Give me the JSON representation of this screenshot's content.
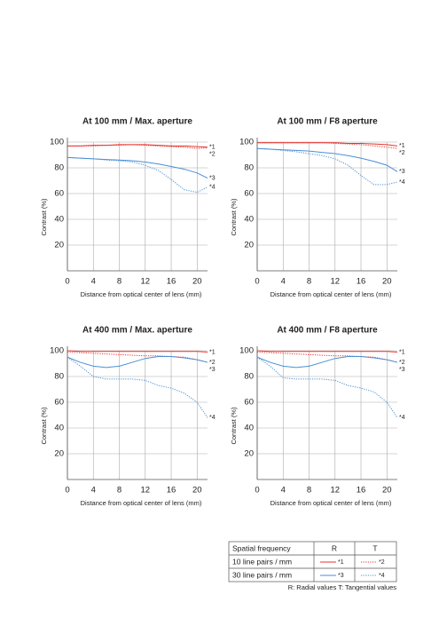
{
  "chart_data": [
    {
      "type": "line",
      "title": "At 100 mm / Max. aperture",
      "xlabel": "Distance from optical center of lens (mm)",
      "ylabel": "Contrast (%)",
      "x": [
        0,
        2,
        4,
        6,
        8,
        10,
        12,
        14,
        16,
        18,
        20,
        21.6
      ],
      "xlim": [
        0,
        21.6
      ],
      "xticks": [
        0,
        4,
        8,
        12,
        16,
        20
      ],
      "ylim": [
        0,
        100
      ],
      "yticks": [
        20,
        40,
        60,
        80,
        100
      ],
      "grid": true,
      "series": [
        {
          "name": "*1",
          "color": "#e8322f",
          "linestyle": "solid",
          "values": [
            97,
            97,
            97.5,
            97.5,
            98,
            98,
            98,
            97.5,
            97,
            97,
            96.5,
            96
          ]
        },
        {
          "name": "*2",
          "color": "#e8322f",
          "linestyle": "dotted",
          "values": [
            97,
            97,
            97,
            97.5,
            97.5,
            98,
            97.5,
            97,
            96.5,
            96,
            95,
            95.5
          ]
        },
        {
          "name": "*3",
          "color": "#4a8fd6",
          "linestyle": "solid",
          "values": [
            88,
            87.5,
            87,
            86.5,
            86,
            85.5,
            84.5,
            83,
            81,
            79,
            76,
            72
          ]
        },
        {
          "name": "*4",
          "color": "#4a8fd6",
          "linestyle": "dotted",
          "values": [
            88,
            87.5,
            87,
            86,
            85.5,
            84.5,
            82,
            78,
            71,
            63,
            61,
            65
          ]
        }
      ]
    },
    {
      "type": "line",
      "title": "At 100 mm / F8 aperture",
      "xlabel": "Distance from optical center of lens (mm)",
      "ylabel": "Contrast (%)",
      "x": [
        0,
        2,
        4,
        6,
        8,
        10,
        12,
        14,
        16,
        18,
        20,
        21.6
      ],
      "xlim": [
        0,
        21.6
      ],
      "xticks": [
        0,
        4,
        8,
        12,
        16,
        20
      ],
      "ylim": [
        0,
        100
      ],
      "yticks": [
        20,
        40,
        60,
        80,
        100
      ],
      "grid": true,
      "series": [
        {
          "name": "*1",
          "color": "#e8322f",
          "linestyle": "solid",
          "values": [
            99.5,
            99.5,
            99.5,
            99.5,
            99.5,
            99.5,
            99.5,
            99,
            99,
            98.5,
            98,
            97
          ]
        },
        {
          "name": "*2",
          "color": "#e8322f",
          "linestyle": "dotted",
          "values": [
            99.5,
            99.5,
            99.5,
            99.5,
            99.5,
            99.5,
            99,
            98.5,
            98,
            97,
            96,
            95
          ]
        },
        {
          "name": "*3",
          "color": "#4a8fd6",
          "linestyle": "solid",
          "values": [
            95,
            94.5,
            94,
            93.5,
            93,
            92,
            91,
            89.5,
            87.5,
            85,
            82,
            77
          ]
        },
        {
          "name": "*4",
          "color": "#4a8fd6",
          "linestyle": "dotted",
          "values": [
            95,
            94.5,
            93.5,
            92.5,
            91,
            89.5,
            87,
            82,
            74,
            67,
            67,
            69
          ]
        }
      ]
    },
    {
      "type": "line",
      "title": "At 400 mm / Max. aperture",
      "xlabel": "Distance from optical center of lens (mm)",
      "ylabel": "Contrast (%)",
      "x": [
        0,
        2,
        4,
        6,
        8,
        10,
        12,
        14,
        16,
        18,
        20,
        21.6
      ],
      "xlim": [
        0,
        21.6
      ],
      "xticks": [
        0,
        4,
        8,
        12,
        16,
        20
      ],
      "ylim": [
        0,
        100
      ],
      "yticks": [
        20,
        40,
        60,
        80,
        100
      ],
      "grid": true,
      "series": [
        {
          "name": "*1",
          "color": "#e8322f",
          "linestyle": "solid",
          "values": [
            100,
            99.5,
            99.5,
            99.5,
            99.5,
            99.5,
            99.5,
            99.5,
            99.5,
            99.5,
            99.5,
            99
          ]
        },
        {
          "name": "*2",
          "color": "#e8322f",
          "linestyle": "dotted",
          "values": [
            99,
            98.5,
            98,
            97.5,
            97,
            96.5,
            96,
            96,
            95.5,
            95,
            93,
            91
          ]
        },
        {
          "name": "*3",
          "color": "#4a8fd6",
          "linestyle": "solid",
          "values": [
            95,
            91,
            88,
            87,
            88,
            91,
            94,
            95.5,
            95.5,
            94.5,
            93,
            91
          ]
        },
        {
          "name": "*4",
          "color": "#4a8fd6",
          "linestyle": "dotted",
          "values": [
            95,
            88,
            80,
            78,
            78,
            78,
            77,
            73,
            71,
            67,
            60,
            48
          ]
        }
      ]
    },
    {
      "type": "line",
      "title": "At 400 mm / F8 aperture",
      "xlabel": "Distance from optical center of lens (mm)",
      "ylabel": "Contrast (%)",
      "x": [
        0,
        2,
        4,
        6,
        8,
        10,
        12,
        14,
        16,
        18,
        20,
        21.6
      ],
      "xlim": [
        0,
        21.6
      ],
      "xticks": [
        0,
        4,
        8,
        12,
        16,
        20
      ],
      "ylim": [
        0,
        100
      ],
      "yticks": [
        20,
        40,
        60,
        80,
        100
      ],
      "grid": true,
      "series": [
        {
          "name": "*1",
          "color": "#e8322f",
          "linestyle": "solid",
          "values": [
            100,
            99.5,
            99.5,
            99.5,
            99.5,
            99.5,
            99.5,
            99.5,
            99.5,
            99.5,
            99.5,
            99
          ]
        },
        {
          "name": "*2",
          "color": "#e8322f",
          "linestyle": "dotted",
          "values": [
            99,
            98.5,
            98,
            97.5,
            97,
            96.5,
            96,
            96,
            95.5,
            95,
            93,
            91
          ]
        },
        {
          "name": "*3",
          "color": "#4a8fd6",
          "linestyle": "solid",
          "values": [
            95,
            91,
            88,
            87,
            88,
            91,
            94,
            95.5,
            95.5,
            94.5,
            93,
            91
          ]
        },
        {
          "name": "*4",
          "color": "#4a8fd6",
          "linestyle": "dotted",
          "values": [
            95,
            88,
            79,
            78,
            78,
            78,
            77,
            73,
            71,
            68,
            60,
            48
          ]
        }
      ]
    }
  ],
  "legend_table": {
    "header": [
      "Spatial frequency",
      "R",
      "T"
    ],
    "rows": [
      "10 line pairs / mm",
      "30 line pairs / mm"
    ]
  },
  "footnote": "R: Radial values  T: Tangential values"
}
